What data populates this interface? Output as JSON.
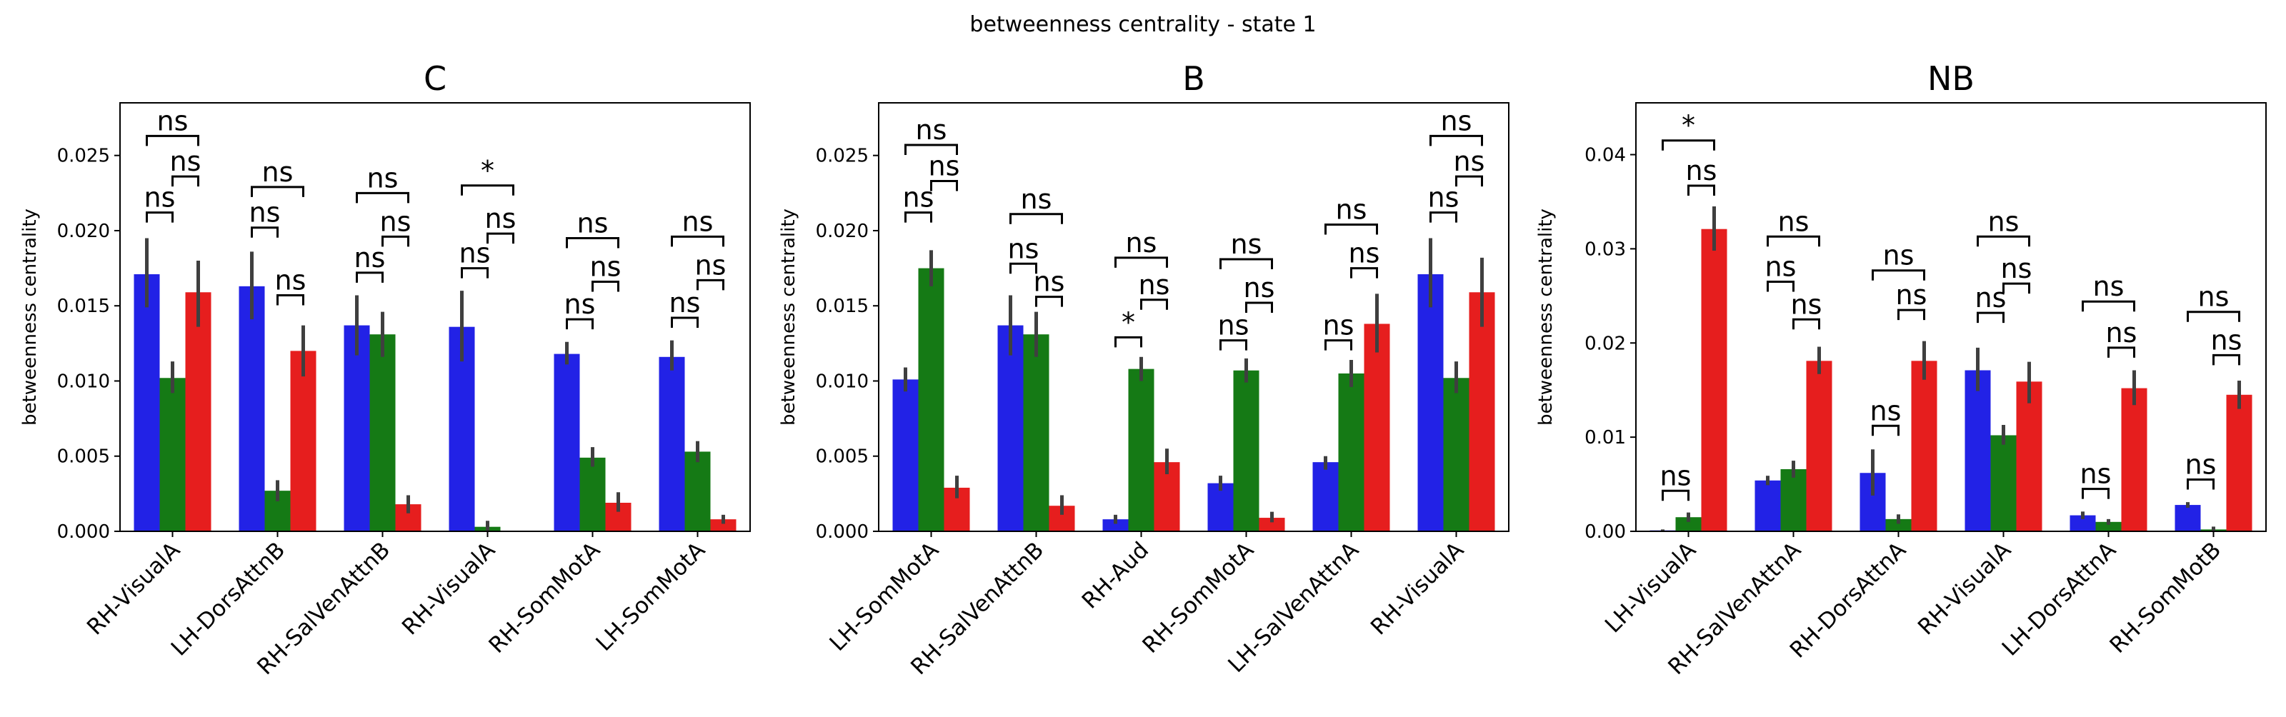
{
  "figure": {
    "suptitle": "betweenness centrality - state 1"
  },
  "colors": {
    "blue": "#2222e6",
    "green": "#157a15",
    "red": "#e61e1e",
    "errorbar": "#3f3f3f"
  },
  "chart_data": [
    {
      "type": "bar",
      "title": "C",
      "ylabel": "betweenness centrality",
      "ylim": [
        0,
        0.0285
      ],
      "yticks": [
        "0.000",
        "0.005",
        "0.010",
        "0.015",
        "0.020",
        "0.025"
      ],
      "categories": [
        "RH-VisualA",
        "LH-DorsAttnB",
        "RH-SalVenAttnB",
        "RH-VisualA",
        "RH-SomMotA",
        "LH-SomMotA"
      ],
      "series": [
        {
          "values": [
            0.0171,
            0.0163,
            0.0137,
            0.0136,
            0.0118,
            0.0116
          ],
          "err_low": [
            0.0149,
            0.0141,
            0.0117,
            0.0113,
            0.0111,
            0.0107
          ],
          "err_high": [
            0.0195,
            0.0186,
            0.0157,
            0.016,
            0.0126,
            0.0127
          ]
        },
        {
          "values": [
            0.0102,
            0.0027,
            0.0131,
            0.0003,
            0.0049,
            0.0053
          ],
          "err_low": [
            0.0092,
            0.002,
            0.0116,
            0.0,
            0.0043,
            0.0046
          ],
          "err_high": [
            0.0113,
            0.0034,
            0.0146,
            0.0007,
            0.0056,
            0.006
          ]
        },
        {
          "values": [
            0.0159,
            0.012,
            0.0018,
            0.0,
            0.0019,
            0.0008
          ],
          "err_low": [
            0.0136,
            0.0103,
            0.0012,
            0.0,
            0.0013,
            0.0005
          ],
          "err_high": [
            0.018,
            0.0137,
            0.0024,
            0.0,
            0.0026,
            0.0011
          ]
        }
      ],
      "annotations": [
        {
          "pair": "01",
          "label": "ns",
          "value": 0.0212
        },
        {
          "pair": "12",
          "label": "ns",
          "value": 0.0236
        },
        {
          "pair": "02",
          "label": "ns",
          "value": 0.0263
        },
        {
          "pair": "01",
          "label": "ns",
          "value": 0.0202
        },
        {
          "pair": "12",
          "label": "ns",
          "value": 0.0157
        },
        {
          "pair": "02",
          "label": "ns",
          "value": 0.0229
        },
        {
          "pair": "01",
          "label": "ns",
          "value": 0.0172
        },
        {
          "pair": "12",
          "label": "ns",
          "value": 0.0196
        },
        {
          "pair": "02",
          "label": "ns",
          "value": 0.0225
        },
        {
          "pair": "01",
          "label": "ns",
          "value": 0.0175
        },
        {
          "pair": "12",
          "label": "ns",
          "value": 0.0198
        },
        {
          "pair": "02",
          "label": "*",
          "value": 0.023
        },
        {
          "pair": "01",
          "label": "ns",
          "value": 0.0141
        },
        {
          "pair": "12",
          "label": "ns",
          "value": 0.0166
        },
        {
          "pair": "02",
          "label": "ns",
          "value": 0.0195
        },
        {
          "pair": "01",
          "label": "ns",
          "value": 0.0142
        },
        {
          "pair": "12",
          "label": "ns",
          "value": 0.0167
        },
        {
          "pair": "02",
          "label": "ns",
          "value": 0.0196
        }
      ]
    },
    {
      "type": "bar",
      "title": "B",
      "ylabel": "betweenness centrality",
      "ylim": [
        0,
        0.0285
      ],
      "yticks": [
        "0.000",
        "0.005",
        "0.010",
        "0.015",
        "0.020",
        "0.025"
      ],
      "categories": [
        "LH-SomMotA",
        "RH-SalVenAttnB",
        "RH-Aud",
        "RH-SomMotA",
        "LH-SalVenAttnA",
        "RH-VisualA"
      ],
      "series": [
        {
          "values": [
            0.0101,
            0.0137,
            0.0008,
            0.0032,
            0.0046,
            0.0171
          ],
          "err_low": [
            0.0093,
            0.0117,
            0.0005,
            0.0027,
            0.0041,
            0.0149
          ],
          "err_high": [
            0.0109,
            0.0157,
            0.0011,
            0.0037,
            0.005,
            0.0195
          ]
        },
        {
          "values": [
            0.0175,
            0.0131,
            0.0108,
            0.0107,
            0.0105,
            0.0102
          ],
          "err_low": [
            0.0163,
            0.0116,
            0.01,
            0.0099,
            0.0096,
            0.0092
          ],
          "err_high": [
            0.0187,
            0.0146,
            0.0116,
            0.0115,
            0.0114,
            0.0113
          ]
        },
        {
          "values": [
            0.0029,
            0.0017,
            0.0046,
            0.0009,
            0.0138,
            0.0159
          ],
          "err_low": [
            0.0022,
            0.0011,
            0.0038,
            0.0006,
            0.0119,
            0.0136
          ],
          "err_high": [
            0.0037,
            0.0024,
            0.0055,
            0.0013,
            0.0158,
            0.0182
          ]
        }
      ],
      "annotations": [
        {
          "pair": "01",
          "label": "ns",
          "value": 0.0212
        },
        {
          "pair": "12",
          "label": "ns",
          "value": 0.0233
        },
        {
          "pair": "02",
          "label": "ns",
          "value": 0.0257
        },
        {
          "pair": "01",
          "label": "ns",
          "value": 0.0178
        },
        {
          "pair": "12",
          "label": "ns",
          "value": 0.0156
        },
        {
          "pair": "02",
          "label": "ns",
          "value": 0.0211
        },
        {
          "pair": "01",
          "label": "*",
          "value": 0.0129
        },
        {
          "pair": "12",
          "label": "ns",
          "value": 0.0154
        },
        {
          "pair": "02",
          "label": "ns",
          "value": 0.0182
        },
        {
          "pair": "01",
          "label": "ns",
          "value": 0.0127
        },
        {
          "pair": "12",
          "label": "ns",
          "value": 0.0152
        },
        {
          "pair": "02",
          "label": "ns",
          "value": 0.0181
        },
        {
          "pair": "01",
          "label": "ns",
          "value": 0.0127
        },
        {
          "pair": "12",
          "label": "ns",
          "value": 0.0175
        },
        {
          "pair": "02",
          "label": "ns",
          "value": 0.0204
        },
        {
          "pair": "01",
          "label": "ns",
          "value": 0.0212
        },
        {
          "pair": "12",
          "label": "ns",
          "value": 0.0236
        },
        {
          "pair": "02",
          "label": "ns",
          "value": 0.0263
        }
      ]
    },
    {
      "type": "bar",
      "title": "NB",
      "ylabel": "betweenness centrality",
      "ylim": [
        0,
        0.0455
      ],
      "yticks": [
        "0.00",
        "0.01",
        "0.02",
        "0.03",
        "0.04"
      ],
      "categories": [
        "LH-VisualA",
        "RH-SalVenAttnA",
        "RH-DorsAttnA",
        "RH-VisualA",
        "LH-DorsAttnA",
        "RH-SomMotB"
      ],
      "series": [
        {
          "values": [
            0.0001,
            0.0054,
            0.0062,
            0.0171,
            0.0017,
            0.0028
          ],
          "err_low": [
            0.0,
            0.0049,
            0.0038,
            0.0149,
            0.0013,
            0.0025
          ],
          "err_high": [
            0.0002,
            0.0059,
            0.0087,
            0.0195,
            0.0021,
            0.0031
          ]
        },
        {
          "values": [
            0.0015,
            0.0066,
            0.0013,
            0.0102,
            0.001,
            0.0002
          ],
          "err_low": [
            0.001,
            0.0057,
            0.0008,
            0.0092,
            0.0007,
            0.0
          ],
          "err_high": [
            0.002,
            0.0075,
            0.0018,
            0.0113,
            0.0013,
            0.0005
          ]
        },
        {
          "values": [
            0.0321,
            0.0181,
            0.0181,
            0.0159,
            0.0152,
            0.0145
          ],
          "err_low": [
            0.0298,
            0.0167,
            0.0161,
            0.0136,
            0.0134,
            0.013
          ],
          "err_high": [
            0.0345,
            0.0196,
            0.0202,
            0.018,
            0.0171,
            0.016
          ]
        }
      ],
      "annotations": [
        {
          "pair": "01",
          "label": "ns",
          "value": 0.0043
        },
        {
          "pair": "12",
          "label": "ns",
          "value": 0.0367
        },
        {
          "pair": "02",
          "label": "*",
          "value": 0.0415
        },
        {
          "pair": "01",
          "label": "ns",
          "value": 0.0265
        },
        {
          "pair": "12",
          "label": "ns",
          "value": 0.0225
        },
        {
          "pair": "02",
          "label": "ns",
          "value": 0.0313
        },
        {
          "pair": "01",
          "label": "ns",
          "value": 0.0112
        },
        {
          "pair": "12",
          "label": "ns",
          "value": 0.0235
        },
        {
          "pair": "02",
          "label": "ns",
          "value": 0.0277
        },
        {
          "pair": "01",
          "label": "ns",
          "value": 0.0232
        },
        {
          "pair": "12",
          "label": "ns",
          "value": 0.0263
        },
        {
          "pair": "02",
          "label": "ns",
          "value": 0.0313
        },
        {
          "pair": "01",
          "label": "ns",
          "value": 0.0045
        },
        {
          "pair": "12",
          "label": "ns",
          "value": 0.0195
        },
        {
          "pair": "02",
          "label": "ns",
          "value": 0.0244
        },
        {
          "pair": "01",
          "label": "ns",
          "value": 0.0055
        },
        {
          "pair": "12",
          "label": "ns",
          "value": 0.0187
        },
        {
          "pair": "02",
          "label": "ns",
          "value": 0.0233
        }
      ]
    }
  ]
}
